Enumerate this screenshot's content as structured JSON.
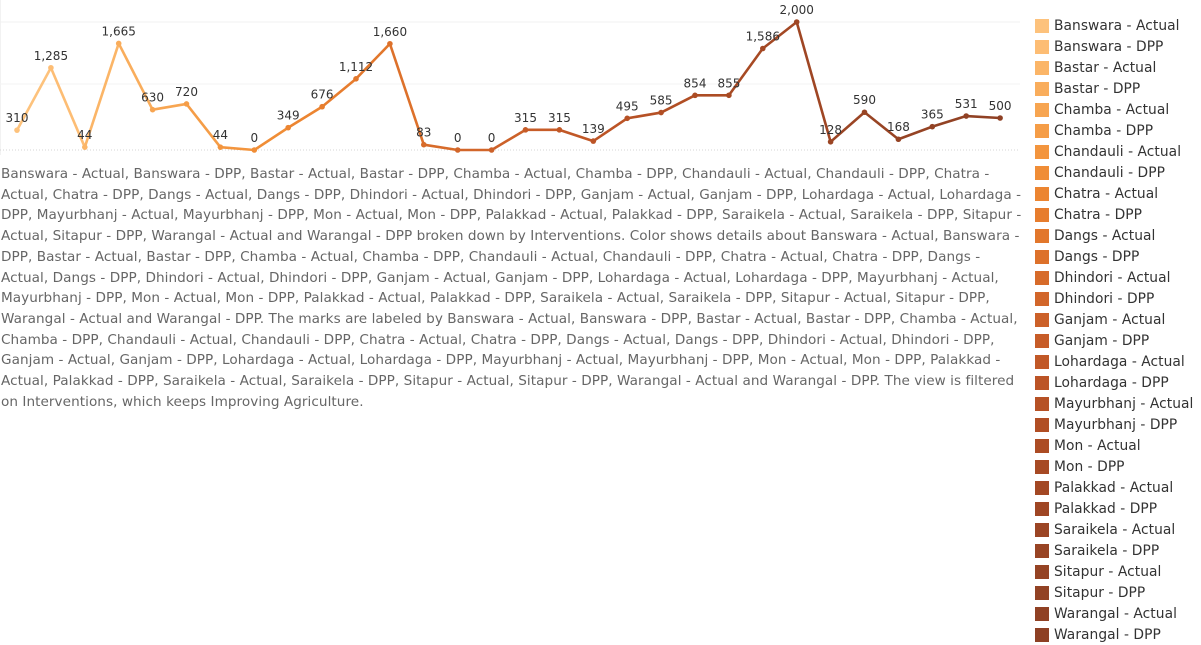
{
  "chart_data": {
    "type": "line",
    "categories": [
      "Banswara - Actual",
      "Banswara - DPP",
      "Bastar - Actual",
      "Bastar - DPP",
      "Chamba - Actual",
      "Chamba - DPP",
      "Chandauli - Actual",
      "Chandauli - DPP",
      "Chatra - Actual",
      "Chatra - DPP",
      "Dangs - Actual",
      "Dangs - DPP",
      "Dhindori - Actual",
      "Dhindori - DPP",
      "Ganjam - Actual",
      "Ganjam - DPP",
      "Lohardaga - Actual",
      "Lohardaga - DPP",
      "Mayurbhanj - Actual",
      "Mayurbhanj - DPP",
      "Mon - Actual",
      "Mon - DPP",
      "Palakkad - Actual",
      "Palakkad - DPP",
      "Saraikela - Actual",
      "Saraikela - DPP",
      "Sitapur - Actual",
      "Sitapur - DPP",
      "Warangal - Actual",
      "Warangal - DPP"
    ],
    "values": [
      310,
      1285,
      44,
      1665,
      630,
      720,
      44,
      0,
      349,
      676,
      1112,
      1660,
      83,
      0,
      0,
      315,
      315,
      139,
      495,
      585,
      854,
      855,
      1586,
      2000,
      128,
      590,
      168,
      365,
      531,
      500
    ],
    "labels": [
      "310",
      "1,285",
      "44",
      "1,665",
      "630",
      "720",
      "44",
      "0",
      "349",
      "676",
      "1,112",
      "1,660",
      "83",
      "0",
      "0",
      "315",
      "315",
      "139",
      "495",
      "585",
      "854",
      "855",
      "1,586",
      "2,000",
      "128",
      "590",
      "168",
      "365",
      "531",
      "500"
    ],
    "colors": [
      "#fdc27c",
      "#fdbd74",
      "#fbb567",
      "#f9ad5c",
      "#f7a551",
      "#f59d47",
      "#f3953e",
      "#f08d36",
      "#ec8531",
      "#e77d2e",
      "#e2772c",
      "#dd712b",
      "#d76b2a",
      "#d2662a",
      "#cc6129",
      "#c75c28",
      "#c15827",
      "#bc5426",
      "#b65125",
      "#b14e24",
      "#ac4c24",
      "#a74a24",
      "#a34824",
      "#9f4624",
      "#9b4524",
      "#984424",
      "#954324",
      "#924224",
      "#904124",
      "#8e4024"
    ],
    "ylim": [
      0,
      2000
    ],
    "grid": true,
    "legend_position": "right"
  },
  "caption": "Banswara - Actual, Banswara - DPP, Bastar - Actual, Bastar - DPP, Chamba - Actual, Chamba - DPP, Chandauli - Actual, Chandauli - DPP, Chatra - Actual, Chatra - DPP, Dangs - Actual, Dangs - DPP, Dhindori - Actual, Dhindori - DPP, Ganjam - Actual, Ganjam - DPP, Lohardaga - Actual, Lohardaga - DPP, Mayurbhanj - Actual, Mayurbhanj - DPP, Mon - Actual, Mon - DPP, Palakkad - Actual, Palakkad - DPP, Saraikela - Actual, Saraikela - DPP, Sitapur - Actual, Sitapur - DPP, Warangal - Actual and Warangal - DPP broken down by Interventions.  Color shows details about Banswara - Actual, Banswara - DPP, Bastar - Actual, Bastar - DPP, Chamba - Actual, Chamba - DPP, Chandauli - Actual, Chandauli - DPP, Chatra - Actual, Chatra - DPP, Dangs - Actual, Dangs - DPP, Dhindori - Actual, Dhindori - DPP, Ganjam - Actual, Ganjam - DPP, Lohardaga - Actual, Lohardaga - DPP, Mayurbhanj - Actual, Mayurbhanj - DPP, Mon - Actual, Mon - DPP, Palakkad - Actual, Palakkad - DPP, Saraikela - Actual, Saraikela - DPP, Sitapur - Actual, Sitapur - DPP, Warangal - Actual and Warangal - DPP.  The marks are labeled by Banswara - Actual, Banswara - DPP, Bastar - Actual, Bastar - DPP, Chamba - Actual, Chamba - DPP, Chandauli - Actual, Chandauli - DPP, Chatra - Actual, Chatra - DPP, Dangs - Actual, Dangs - DPP, Dhindori - Actual, Dhindori - DPP, Ganjam - Actual, Ganjam - DPP, Lohardaga - Actual, Lohardaga - DPP, Mayurbhanj - Actual, Mayurbhanj - DPP, Mon - Actual, Mon - DPP, Palakkad - Actual, Palakkad - DPP, Saraikela - Actual, Saraikela - DPP, Sitapur - Actual, Sitapur - DPP, Warangal - Actual and Warangal - DPP. The view is filtered on Interventions, which keeps Improving Agriculture."
}
